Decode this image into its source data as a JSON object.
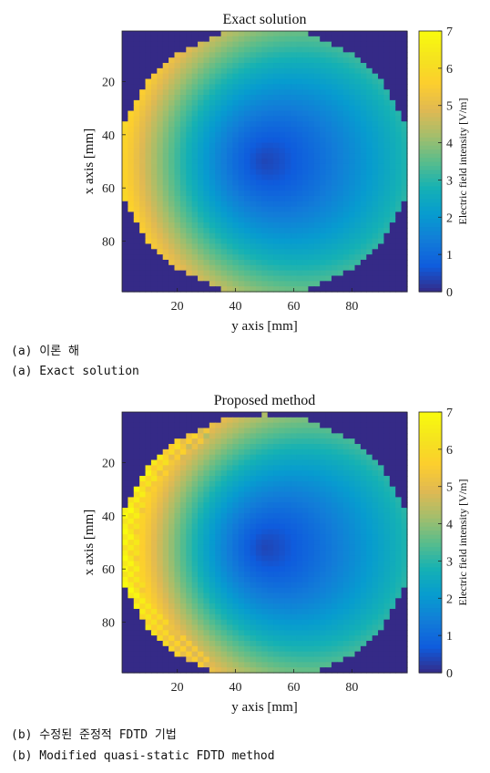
{
  "chart_data": [
    {
      "type": "heatmap",
      "title": "Exact solution",
      "xlabel": "y axis [mm]",
      "ylabel": "x axis [mm]",
      "x_ticks": [
        20,
        40,
        60,
        80
      ],
      "y_ticks": [
        20,
        40,
        60,
        80
      ],
      "xlim": [
        1,
        99
      ],
      "ylim": [
        1,
        99
      ],
      "colorbar": {
        "label": "Electric field intensity [V/m]",
        "ticks": [
          0,
          1,
          2,
          3,
          4,
          5,
          6,
          7
        ],
        "range": [
          0,
          7
        ]
      },
      "field": {
        "center_x_mm": 50,
        "center_y_mm": 50,
        "radius_mm": 50,
        "center_value": 0.4,
        "edge_value_min": 3.0,
        "edge_value_max": 6.0,
        "outside_value": 0
      },
      "colormap": "parula"
    },
    {
      "type": "heatmap",
      "title": "Proposed method",
      "xlabel": "y axis [mm]",
      "ylabel": "x axis [mm]",
      "x_ticks": [
        20,
        40,
        60,
        80
      ],
      "y_ticks": [
        20,
        40,
        60,
        80
      ],
      "xlim": [
        1,
        99
      ],
      "ylim": [
        1,
        99
      ],
      "colorbar": {
        "label": "Electric field intensity [V/m]",
        "ticks": [
          0,
          1,
          2,
          3,
          4,
          5,
          6,
          7
        ],
        "range": [
          0,
          7
        ]
      },
      "field": {
        "center_x_mm": 50,
        "center_y_mm": 52,
        "radius_mm": 50,
        "center_value": 0.4,
        "edge_value_min": 3.0,
        "edge_value_max": 7.0,
        "outside_value": 0
      },
      "colormap": "parula"
    }
  ],
  "captions": {
    "a_korean": "(a) 이론 해",
    "a_english": "(a) Exact solution",
    "b_korean": "(b) 수정된 준정적 FDTD 기법",
    "b_english": "(b) Modified quasi-static FDTD method"
  }
}
